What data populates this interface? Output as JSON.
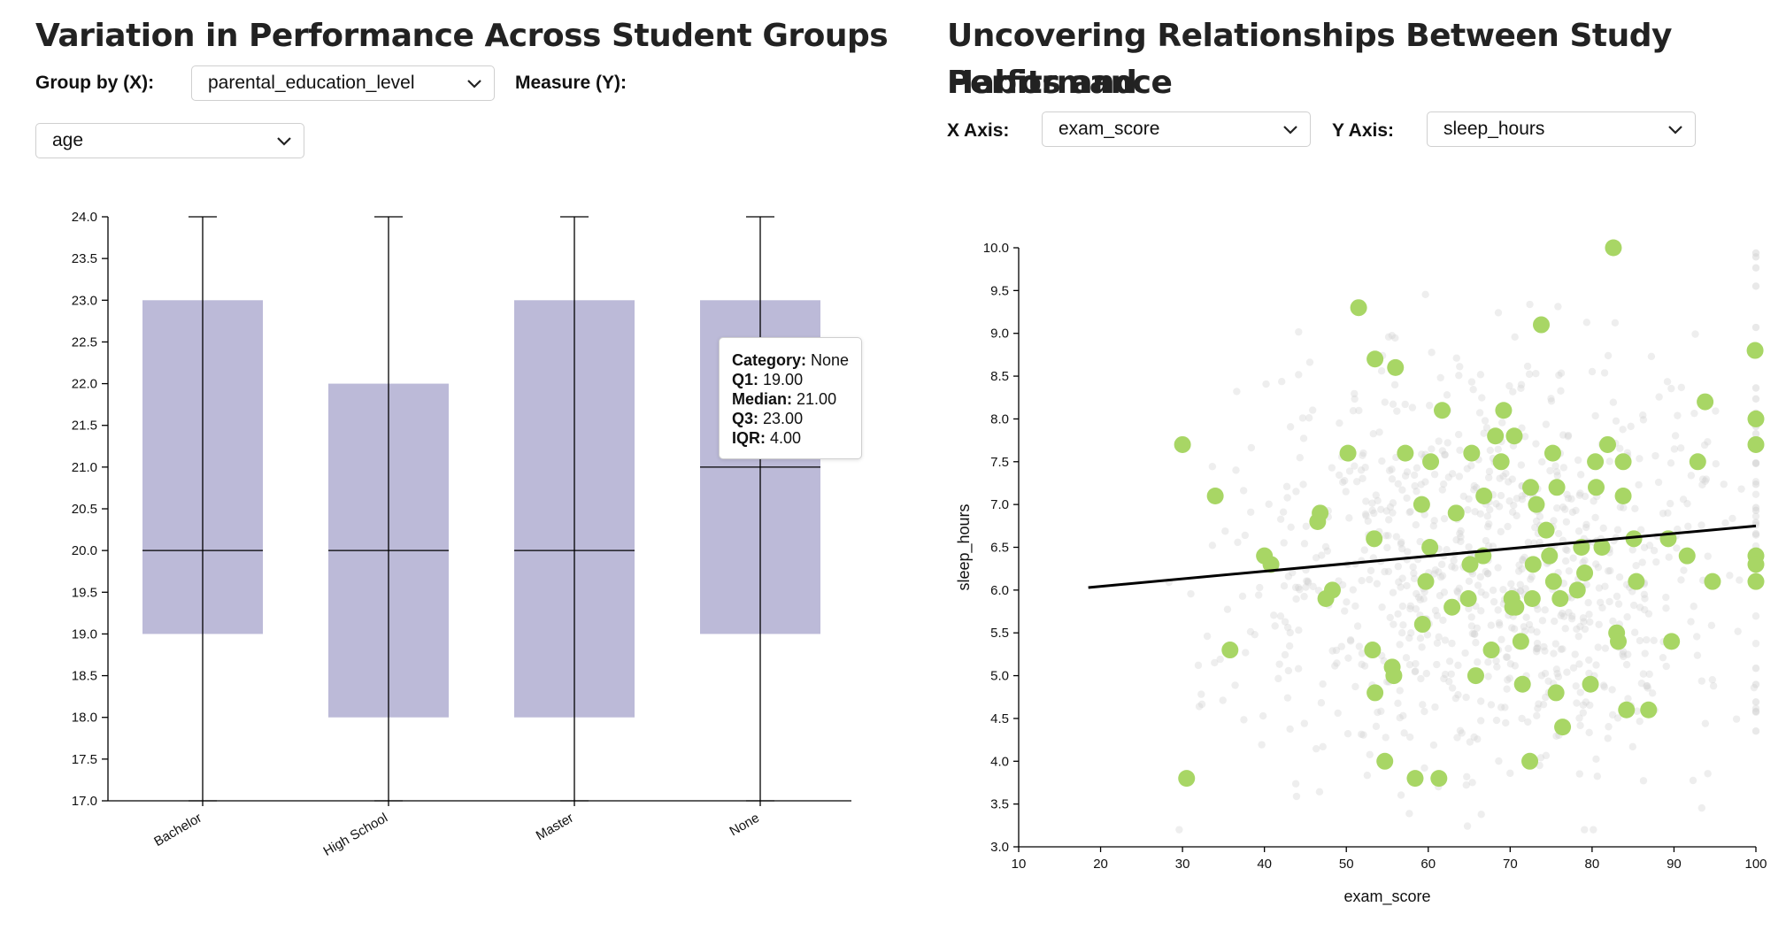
{
  "left": {
    "title": "Variation in Performance Across Student Groups",
    "group_by_label": "Group by (X):",
    "group_by_value": "parental_education_level",
    "measure_label": "Measure (Y):",
    "measure_value": "age"
  },
  "right": {
    "title_line1": "Uncovering Relationships Between Study Habits and",
    "title_line2": "Performance",
    "x_axis_label": "X Axis:",
    "x_axis_value": "exam_score",
    "y_axis_label": "Y Axis:",
    "y_axis_value": "sleep_hours"
  },
  "tooltip": {
    "category_label": "Category:",
    "category": "None",
    "q1_label": "Q1:",
    "q1": "19.00",
    "median_label": "Median:",
    "median": "21.00",
    "q3_label": "Q3:",
    "q3": "23.00",
    "iqr_label": "IQR:",
    "iqr": "4.00"
  },
  "colors": {
    "box_fill": "#bcbad8",
    "highlight_point": "#a8d665",
    "background_point": "#cfcfcf",
    "trend_line": "#000000"
  },
  "icons": {
    "select_arrow": "chevron-down-icon"
  },
  "chart_data": [
    {
      "type": "box",
      "ylim": [
        17,
        24
      ],
      "yticks": [
        "17.0",
        "17.5",
        "18.0",
        "18.5",
        "19.0",
        "19.5",
        "20.0",
        "20.5",
        "21.0",
        "21.5",
        "22.0",
        "22.5",
        "23.0",
        "23.5",
        "24.0"
      ],
      "categories": [
        "Bachelor",
        "High School",
        "Master",
        "None"
      ],
      "boxes": [
        {
          "category": "Bachelor",
          "min": 17,
          "q1": 19,
          "median": 20,
          "q3": 23,
          "max": 24
        },
        {
          "category": "High School",
          "min": 17,
          "q1": 18,
          "median": 20,
          "q3": 22,
          "max": 24
        },
        {
          "category": "Master",
          "min": 17,
          "q1": 18,
          "median": 20,
          "q3": 23,
          "max": 24
        },
        {
          "category": "None",
          "min": 17,
          "q1": 19,
          "median": 21,
          "q3": 23,
          "max": 24
        }
      ]
    },
    {
      "type": "scatter",
      "xlabel": "exam_score",
      "ylabel": "sleep_hours",
      "xlim": [
        10,
        100
      ],
      "ylim": [
        3,
        10
      ],
      "xticks": [
        "10",
        "20",
        "30",
        "40",
        "50",
        "60",
        "70",
        "80",
        "90",
        "100"
      ],
      "yticks": [
        "3.0",
        "3.5",
        "4.0",
        "4.5",
        "5.0",
        "5.5",
        "6.0",
        "6.5",
        "7.0",
        "7.5",
        "8.0",
        "8.5",
        "9.0",
        "9.5",
        "10.0"
      ],
      "trend_line": [
        [
          18.5,
          6.03
        ],
        [
          100,
          6.75
        ]
      ],
      "highlighted_points": [
        [
          30,
          7.7
        ],
        [
          30.5,
          3.8
        ],
        [
          34,
          7.1
        ],
        [
          35.8,
          5.3
        ],
        [
          40,
          6.4
        ],
        [
          40.8,
          6.3
        ],
        [
          46.5,
          6.8
        ],
        [
          46.8,
          6.9
        ],
        [
          47.5,
          5.9
        ],
        [
          48.3,
          6.0
        ],
        [
          50.2,
          7.6
        ],
        [
          51.5,
          9.3
        ],
        [
          53.2,
          5.3
        ],
        [
          53.4,
          6.6
        ],
        [
          53.5,
          4.8
        ],
        [
          53.5,
          8.7
        ],
        [
          54.7,
          4.0
        ],
        [
          55.6,
          5.1
        ],
        [
          55.8,
          5.0
        ],
        [
          56,
          8.6
        ],
        [
          57.2,
          7.6
        ],
        [
          58.4,
          3.8
        ],
        [
          59.2,
          7.0
        ],
        [
          59.3,
          5.6
        ],
        [
          59.7,
          6.1
        ],
        [
          60.2,
          6.5
        ],
        [
          60.3,
          7.5
        ],
        [
          61.3,
          3.8
        ],
        [
          61.7,
          8.1
        ],
        [
          62.9,
          5.8
        ],
        [
          63.4,
          6.9
        ],
        [
          64.9,
          5.9
        ],
        [
          65.1,
          6.3
        ],
        [
          65.3,
          7.6
        ],
        [
          65.8,
          5.0
        ],
        [
          66.7,
          6.4
        ],
        [
          66.8,
          7.1
        ],
        [
          67.7,
          5.3
        ],
        [
          68.2,
          7.8
        ],
        [
          68.9,
          7.5
        ],
        [
          69.2,
          8.1
        ],
        [
          70.2,
          5.9
        ],
        [
          70.3,
          5.8
        ],
        [
          70.5,
          7.8
        ],
        [
          70.7,
          5.8
        ],
        [
          71.3,
          5.4
        ],
        [
          71.5,
          4.9
        ],
        [
          72.4,
          4.0
        ],
        [
          72.5,
          7.2
        ],
        [
          72.7,
          5.9
        ],
        [
          72.8,
          6.3
        ],
        [
          73.2,
          7.0
        ],
        [
          73.8,
          9.1
        ],
        [
          74.4,
          6.7
        ],
        [
          74.8,
          6.4
        ],
        [
          75.2,
          7.6
        ],
        [
          75.3,
          6.1
        ],
        [
          75.6,
          4.8
        ],
        [
          75.7,
          7.2
        ],
        [
          76.1,
          5.9
        ],
        [
          76.4,
          4.4
        ],
        [
          78.2,
          6.0
        ],
        [
          78.7,
          6.5
        ],
        [
          79.1,
          6.2
        ],
        [
          79.8,
          4.9
        ],
        [
          80.4,
          7.5
        ],
        [
          80.5,
          7.2
        ],
        [
          81.2,
          6.5
        ],
        [
          81.9,
          7.7
        ],
        [
          82.6,
          10.0
        ],
        [
          83,
          5.5
        ],
        [
          83.2,
          5.4
        ],
        [
          83.8,
          7.5
        ],
        [
          83.8,
          7.1
        ],
        [
          84.2,
          4.6
        ],
        [
          85.1,
          6.6
        ],
        [
          85.4,
          6.1
        ],
        [
          86.9,
          4.6
        ],
        [
          89.3,
          6.6
        ],
        [
          89.7,
          5.4
        ],
        [
          91.6,
          6.4
        ],
        [
          92.9,
          7.5
        ],
        [
          93.8,
          8.2
        ],
        [
          94.7,
          6.1
        ],
        [
          99.9,
          8.8
        ],
        [
          100,
          8.0
        ],
        [
          100,
          7.7
        ],
        [
          100,
          6.4
        ],
        [
          100,
          6.3
        ],
        [
          100,
          6.1
        ]
      ]
    }
  ]
}
